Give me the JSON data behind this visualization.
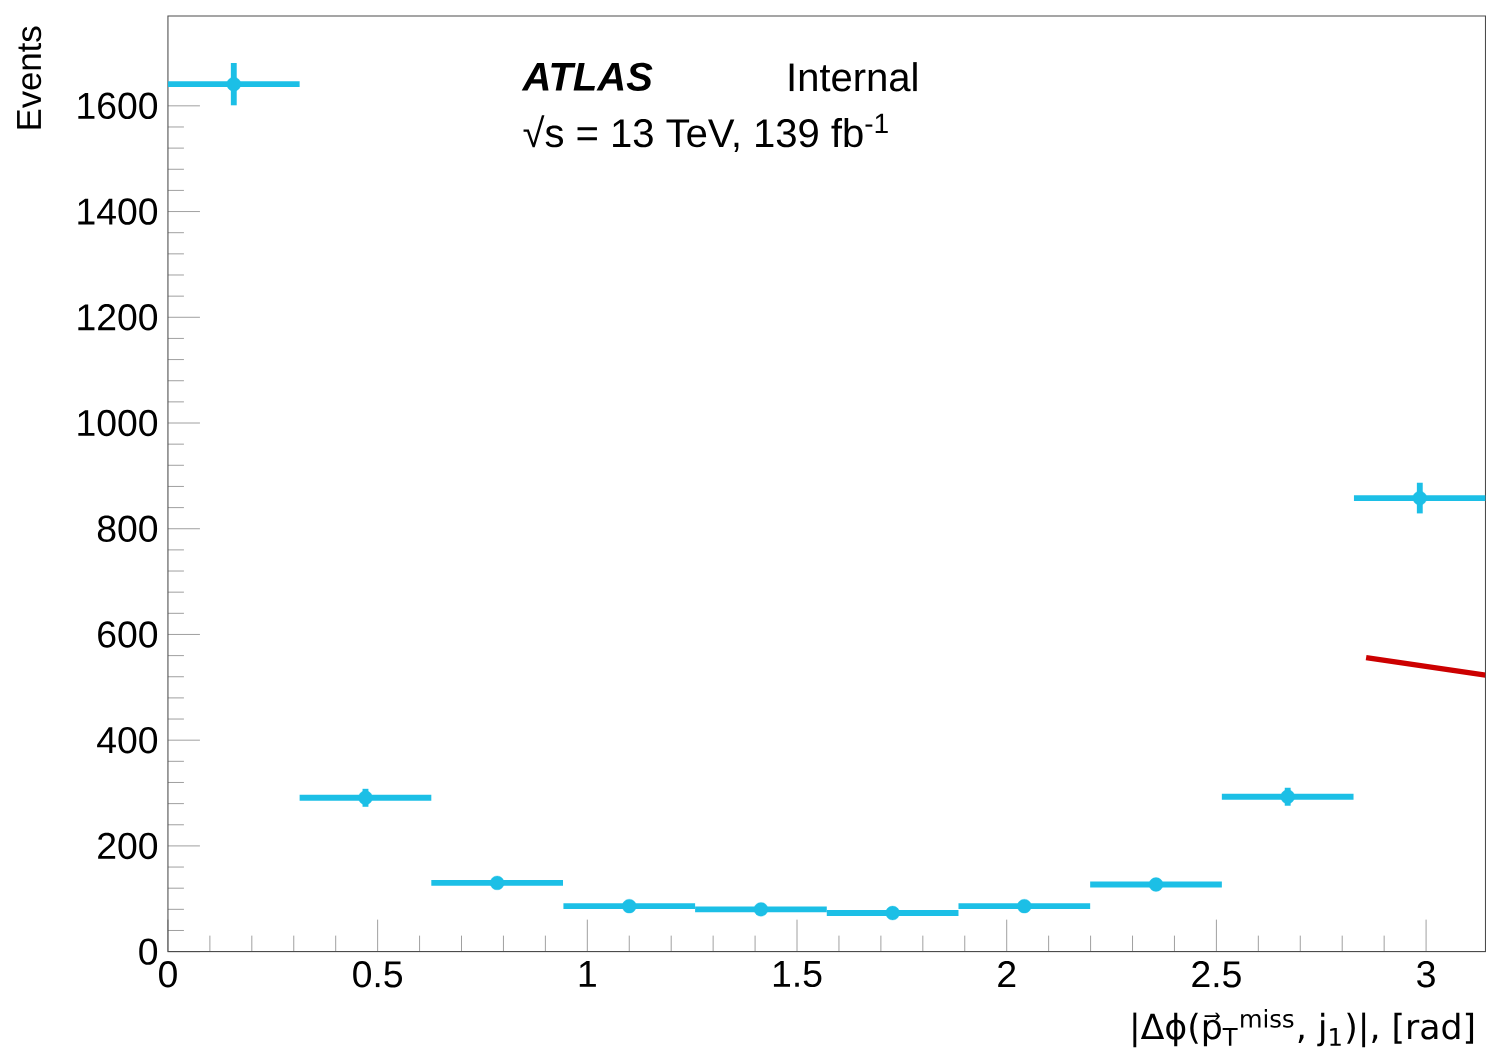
{
  "chart_data": {
    "type": "scatter",
    "xlabel": "|Δϕ(p⃗$_{T}$$^{miss}$, j$_{1}$)|, [rad]",
    "ylabel": "Events",
    "annotations": [
      "ATLAS",
      "Internal",
      "√s = 13 TeV, 139 fb$^{-1}$"
    ],
    "xlim": [
      0,
      3.1416
    ],
    "ylim": [
      0,
      1770
    ],
    "xticks": [
      0,
      0.5,
      1,
      1.5,
      2,
      2.5,
      3
    ],
    "yticks": [
      0,
      200,
      400,
      600,
      800,
      1000,
      1200,
      1400,
      1600
    ],
    "series": [
      {
        "marker": "circle",
        "color": "#1cbfe6",
        "x": [
          0.157,
          0.471,
          0.785,
          1.1,
          1.414,
          1.728,
          2.042,
          2.356,
          2.67,
          2.985
        ],
        "values": [
          1641,
          291,
          130,
          86,
          80,
          73,
          86,
          127,
          293,
          858
        ],
        "errors": [
          40,
          17,
          11,
          9,
          9,
          9,
          9,
          11,
          17,
          29
        ],
        "xerrors": [
          0.157,
          0.157,
          0.157,
          0.157,
          0.157,
          0.157,
          0.157,
          0.157,
          0.157,
          0.157
        ]
      },
      {
        "type": "line",
        "marker": "none",
        "color": "#cc0000",
        "x": [
          2.857,
          3.1416
        ],
        "values": [
          556,
          523
        ]
      }
    ]
  }
}
